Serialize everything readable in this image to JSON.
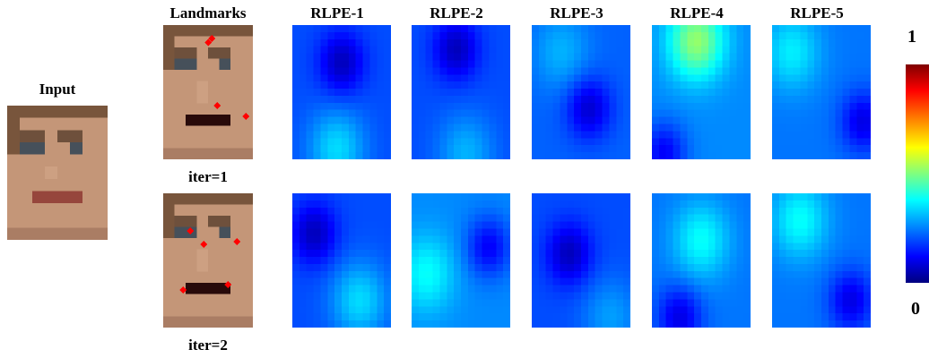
{
  "labels": {
    "input": "Input",
    "landmarks": "Landmarks",
    "iter1": "iter=1",
    "iter2": "iter=2"
  },
  "columns": [
    "RLPE-1",
    "RLPE-2",
    "RLPE-3",
    "RLPE-4",
    "RLPE-5"
  ],
  "colorbar": {
    "max_label": "1",
    "min_label": "0",
    "colormap": "jet"
  },
  "colors": {
    "landmark_marker": "#ff0000",
    "jet_low": "#00007f",
    "jet_high": "#7f0000"
  }
}
